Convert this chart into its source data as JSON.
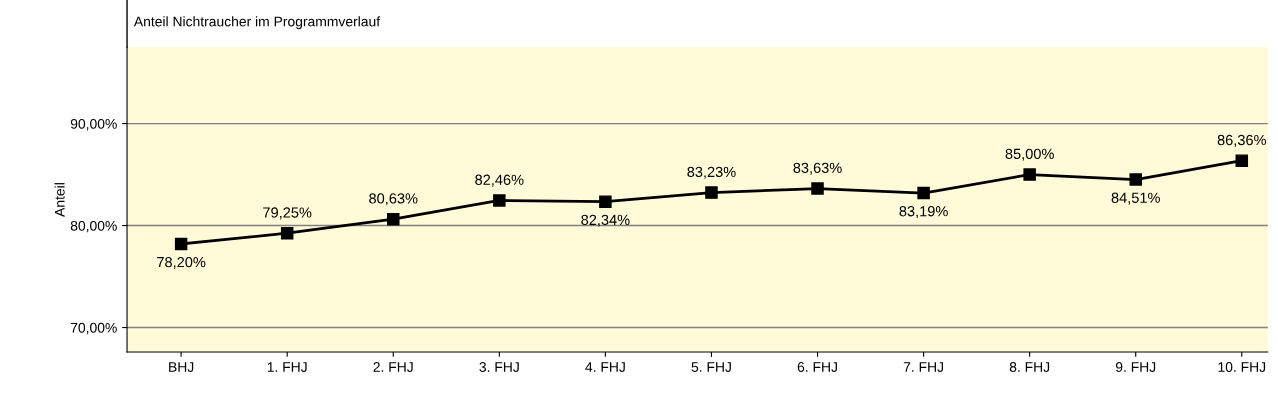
{
  "chart_data": {
    "type": "line",
    "title": "Anteil Nichtraucher im Programmverlauf",
    "ylabel": "Anteil",
    "categories": [
      "BHJ",
      "1. FHJ",
      "2. FHJ",
      "3. FHJ",
      "4. FHJ",
      "5. FHJ",
      "6. FHJ",
      "7. FHJ",
      "8. FHJ",
      "9. FHJ",
      "10. FHJ"
    ],
    "series": [
      {
        "color": "#000000",
        "values": [
          78.2,
          79.25,
          80.63,
          82.46,
          82.34,
          83.23,
          83.63,
          83.19,
          85.0,
          84.51,
          86.36
        ],
        "value_labels": [
          "78,20%",
          "79,25%",
          "80,63%",
          "82,46%",
          "82,34%",
          "83,23%",
          "83,63%",
          "83,19%",
          "85,00%",
          "84,51%",
          "86,36%"
        ]
      }
    ],
    "ylim": [
      67.6,
      97.5
    ],
    "yticks": [
      {
        "value": 70,
        "label": "70,00%"
      },
      {
        "value": 80,
        "label": "80,00%"
      },
      {
        "value": 90,
        "label": "90,00%"
      }
    ],
    "grid": "y",
    "marker": "square",
    "line_style": "solid",
    "legend": false
  }
}
